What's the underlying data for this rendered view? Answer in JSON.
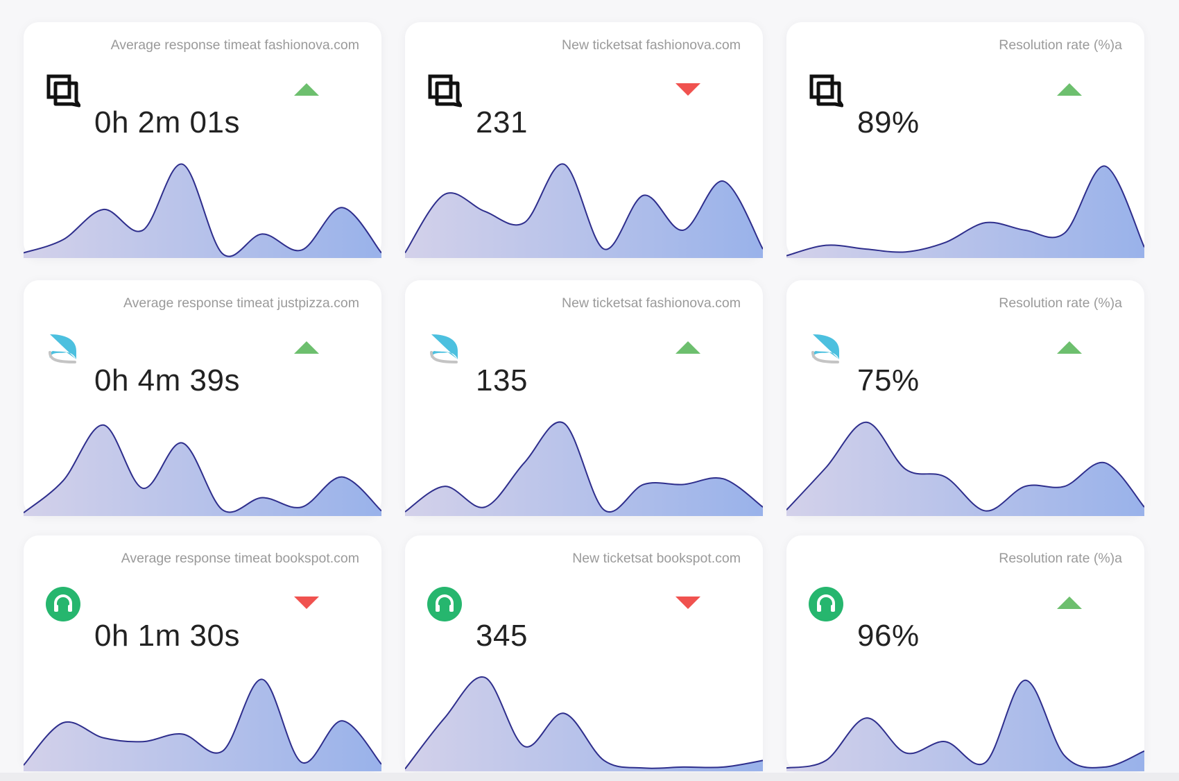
{
  "colors": {
    "trend_up": "#6dbf6e",
    "trend_down": "#f0524f",
    "line": "#2e2e8c",
    "fill_start": "#d3d1ea",
    "fill_end": "#99b2ea",
    "brand_freshdesk": "#26b66e",
    "brand_zendesk": "#4cc0df"
  },
  "rows": [
    {
      "brand_icon": "speech-squares-icon",
      "cards": [
        {
          "title": "Average response timeat fashionova.com",
          "value": "0h 2m 01s",
          "trend": "up",
          "curve": [
            0.04,
            0.18,
            0.5,
            0.28,
            0.98,
            0.03,
            0.24,
            0.07,
            0.52,
            0.04
          ]
        },
        {
          "title": "New ticketsat fashionova.com",
          "value": "231",
          "trend": "down",
          "curve": [
            0.04,
            0.66,
            0.48,
            0.36,
            0.98,
            0.08,
            0.65,
            0.28,
            0.8,
            0.08
          ]
        },
        {
          "title": "Resolution rate (%)a",
          "value": "89%",
          "trend": "up",
          "curve": [
            0.01,
            0.12,
            0.08,
            0.05,
            0.15,
            0.36,
            0.28,
            0.25,
            0.96,
            0.1
          ]
        }
      ]
    },
    {
      "brand_icon": "zendesk-swoosh-icon",
      "cards": [
        {
          "title": "Average response timeat justpizza.com",
          "value": "0h 4m 39s",
          "trend": "up",
          "curve": [
            0.02,
            0.36,
            0.95,
            0.28,
            0.76,
            0.05,
            0.18,
            0.08,
            0.4,
            0.04
          ]
        },
        {
          "title": "New ticketsat fashionova.com",
          "value": "135",
          "trend": "up",
          "curve": [
            0.03,
            0.3,
            0.08,
            0.55,
            0.97,
            0.05,
            0.32,
            0.32,
            0.38,
            0.08
          ]
        },
        {
          "title": "Resolution rate (%)a",
          "value": "75%",
          "trend": "up",
          "curve": [
            0.05,
            0.5,
            0.98,
            0.48,
            0.4,
            0.04,
            0.3,
            0.3,
            0.55,
            0.08
          ]
        }
      ]
    },
    {
      "brand_icon": "headset-icon",
      "cards": [
        {
          "title": "Average response timeat bookspot.com",
          "value": "0h 1m 30s",
          "trend": "down",
          "curve": [
            0.05,
            0.5,
            0.34,
            0.3,
            0.38,
            0.2,
            0.96,
            0.08,
            0.52,
            0.06
          ]
        },
        {
          "title": "New ticketsat bookspot.com",
          "value": "345",
          "trend": "down",
          "curve": [
            0.01,
            0.55,
            0.98,
            0.25,
            0.6,
            0.1,
            0.02,
            0.03,
            0.03,
            0.1
          ]
        },
        {
          "title": "Resolution rate (%)a",
          "value": "96%",
          "trend": "up",
          "curve": [
            0.02,
            0.1,
            0.55,
            0.18,
            0.3,
            0.08,
            0.95,
            0.15,
            0.03,
            0.2
          ]
        }
      ]
    }
  ]
}
